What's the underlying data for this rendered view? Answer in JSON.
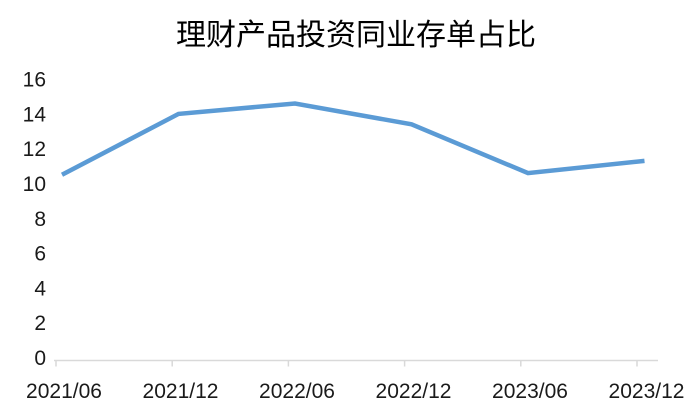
{
  "chart_data": {
    "type": "line",
    "title": "理财产品投资同业存单占比",
    "categories": [
      "2021/06",
      "2021/12",
      "2022/06",
      "2022/12",
      "2023/06",
      "2023/12"
    ],
    "series": [
      {
        "name": "理财产品投资同业存单占比",
        "values": [
          10.5,
          14.0,
          14.6,
          13.4,
          10.6,
          11.3
        ]
      }
    ],
    "xlabel": "",
    "ylabel": "",
    "ylim": [
      0,
      16
    ],
    "yticks": [
      0,
      2,
      4,
      6,
      8,
      10,
      12,
      14,
      16
    ],
    "grid": false,
    "legend_position": "none",
    "markers": false,
    "colors": {
      "line": "#5B9BD5",
      "axis": "#D9D9D9",
      "text": "#1A1A1A",
      "background": "#FFFFFF"
    }
  }
}
